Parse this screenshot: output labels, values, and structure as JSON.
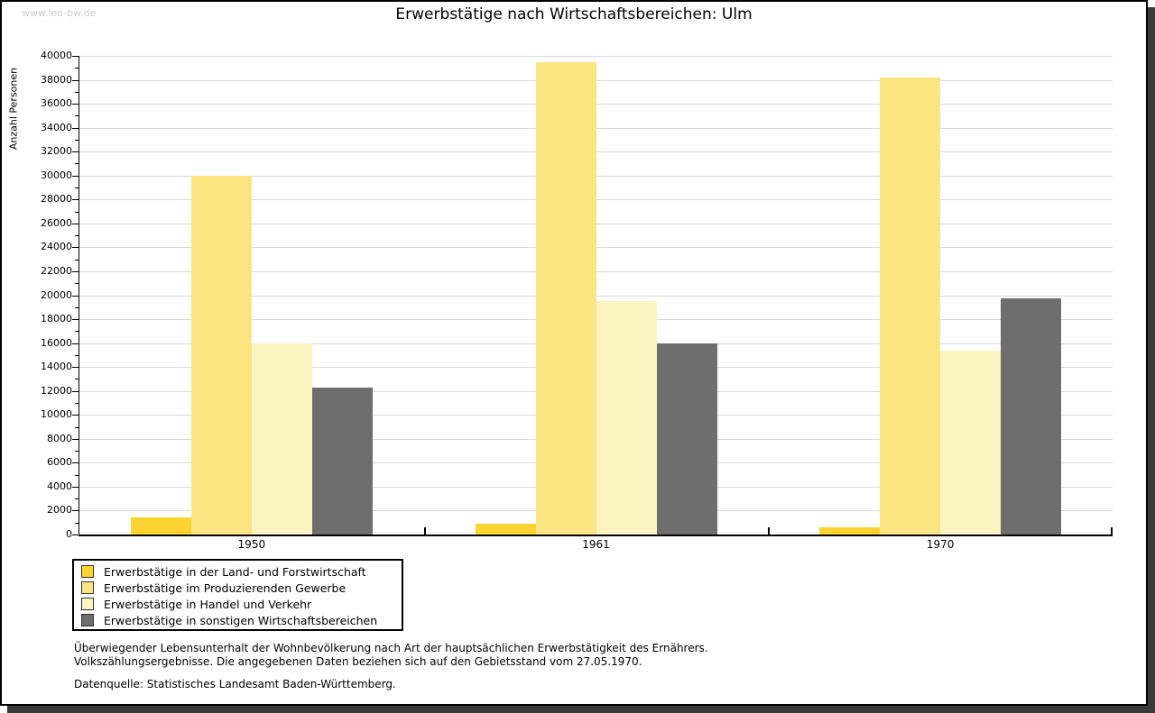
{
  "page": {
    "watermark": "www.leo-bw.de",
    "footnote_line1": "Überwiegender Lebensunterhalt der Wohnbevölkerung nach Art der hauptsächlichen Erwerbstätigkeit des Ernährers.",
    "footnote_line2": "Volkszählungsergebnisse. Die angegebenen Daten beziehen sich auf den Gebietsstand vom 27.05.1970.",
    "source": "Datenquelle: Statistisches Landesamt Baden-Württemberg."
  },
  "chart_data": {
    "type": "bar",
    "title": "Erwerbstätige nach Wirtschaftsbereichen: Ulm",
    "ylabel": "Anzahl Personen",
    "xlabel": "",
    "categories": [
      "1950",
      "1961",
      "1970"
    ],
    "series": [
      {
        "name": "Erwerbstätige in der Land- und Forstwirtschaft",
        "color": "#fdd332",
        "values": [
          1400,
          900,
          600
        ]
      },
      {
        "name": "Erwerbstätige im Produzierenden Gewerbe",
        "color": "#fbe583",
        "values": [
          30000,
          39500,
          38200
        ]
      },
      {
        "name": "Erwerbstätige in Handel und Verkehr",
        "color": "#fbf3c0",
        "values": [
          16000,
          19500,
          15400
        ]
      },
      {
        "name": "Erwerbstätige in sonstigen Wirtschaftsbereichen",
        "color": "#6e6e6e",
        "values": [
          12300,
          16000,
          19700
        ]
      }
    ],
    "ylim": [
      0,
      40000
    ],
    "ytick_major": 2000,
    "ytick_minor": 1000,
    "grid": true,
    "legend_position": "bottom-left",
    "colors": {
      "gridline": "#d9d9d9",
      "axis": "#000000",
      "shadow": "#3a3a3a",
      "watermark": "#cccccc"
    }
  }
}
